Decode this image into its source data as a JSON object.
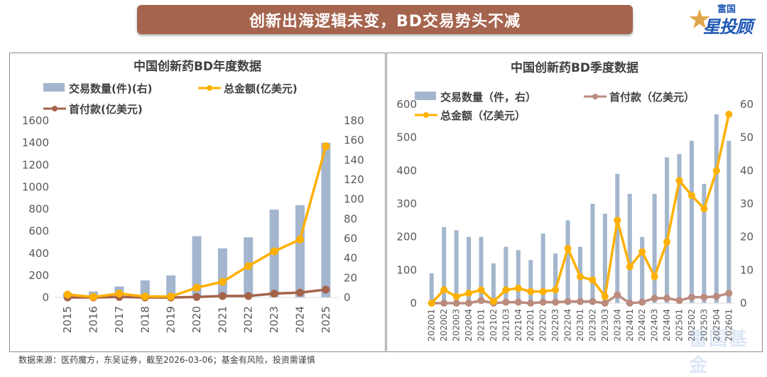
{
  "banner": {
    "title": "创新出海逻辑未变，BD交易势头不减"
  },
  "logo": {
    "top": "富国",
    "main": "星投顾",
    "icon": "star-icon"
  },
  "watermark": "富国基金",
  "footnote": "数据来源：医药魔方，东吴证券，截至2026-03-06；基金有风险，投资需谨慎",
  "colors": {
    "bar": "#a3b6cd",
    "total": "#ffb000",
    "upfront_left": "#a5634a",
    "upfront_right": "#bb8b7e",
    "banner": "#a5644e"
  },
  "chart_data": [
    {
      "type": "bar+line",
      "title": "中国创新药BD年度数据",
      "legend": [
        "交易数量(件)(右)",
        "总金额(亿美元)",
        "首付款(亿美元)"
      ],
      "legend_position": "top",
      "categories": [
        "2015",
        "2016",
        "2017",
        "2018",
        "2019",
        "2020",
        "2021",
        "2022",
        "2023",
        "2024",
        "2025"
      ],
      "left_axis": {
        "ylim": [
          0,
          1600
        ],
        "ticks": [
          "0",
          "200",
          "400",
          "600",
          "800",
          "1000",
          "1200",
          "1400",
          "1600"
        ]
      },
      "right_axis": {
        "ylim": [
          0,
          180
        ],
        "ticks": [
          "0",
          "20",
          "40",
          "60",
          "80",
          "100",
          "120",
          "140",
          "160",
          "180"
        ]
      },
      "series": [
        {
          "name": "交易数量(件)(右)",
          "type": "bar",
          "axis": "left",
          "values": [
            40,
            55,
            100,
            155,
            200,
            555,
            445,
            545,
            795,
            835,
            1400
          ]
        },
        {
          "name": "总金额(亿美元)",
          "type": "line",
          "axis": "right",
          "values": [
            3,
            0.5,
            4,
            1,
            1,
            10,
            16,
            32,
            47,
            59,
            154
          ]
        },
        {
          "name": "首付款(亿美元)",
          "type": "line",
          "axis": "right",
          "values": [
            0,
            0,
            0.5,
            0,
            0,
            0.5,
            1.5,
            1.5,
            4,
            5,
            8
          ]
        }
      ],
      "grid": false
    },
    {
      "type": "bar+line",
      "title": "中国创新药BD季度数据",
      "legend": [
        "交易数量（件，右）",
        "首付款（亿美元）",
        "总金额（亿美元）"
      ],
      "legend_position": "top",
      "categories": [
        "2020Q1",
        "2020Q2",
        "2020Q3",
        "2020Q4",
        "2021Q1",
        "2021Q2",
        "2021Q3",
        "2021Q4",
        "2022Q1",
        "2022Q2",
        "2022Q3",
        "2022Q4",
        "2023Q1",
        "2023Q2",
        "2023Q3",
        "2023Q4",
        "2024Q1",
        "2024Q2",
        "2024Q3",
        "2024Q4",
        "2025Q1",
        "2025Q2",
        "2025Q3",
        "2025Q4",
        "2026Q1"
      ],
      "left_axis": {
        "ylim": [
          0,
          600
        ],
        "ticks": [
          "0",
          "100",
          "200",
          "300",
          "400",
          "500",
          "600"
        ]
      },
      "right_axis": {
        "ylim": [
          0,
          60
        ],
        "ticks": [
          "0",
          "10",
          "20",
          "30",
          "40",
          "50",
          "60"
        ]
      },
      "series": [
        {
          "name": "交易数量（件，右）",
          "type": "bar",
          "axis": "left",
          "values": [
            90,
            230,
            220,
            200,
            200,
            120,
            170,
            160,
            130,
            210,
            150,
            250,
            170,
            300,
            270,
            390,
            330,
            200,
            330,
            440,
            450,
            490,
            360,
            570,
            490
          ]
        },
        {
          "name": "总金额（亿美元）",
          "type": "line",
          "axis": "right",
          "values": [
            0,
            4,
            2,
            3,
            4,
            0.5,
            4,
            4.5,
            3.5,
            3.5,
            4,
            16.5,
            8,
            7,
            2,
            25,
            11,
            15.5,
            8,
            18.5,
            37,
            32.5,
            28.5,
            40,
            57
          ]
        },
        {
          "name": "首付款（亿美元）",
          "type": "line",
          "axis": "right",
          "values": [
            0,
            0,
            0,
            0,
            0.8,
            0,
            0.3,
            0.3,
            0,
            0.3,
            0.3,
            0.5,
            0.5,
            0.5,
            0,
            2.5,
            0,
            0.3,
            1.5,
            1.5,
            0.8,
            1.8,
            1.8,
            2,
            3
          ]
        }
      ],
      "grid": false
    }
  ]
}
